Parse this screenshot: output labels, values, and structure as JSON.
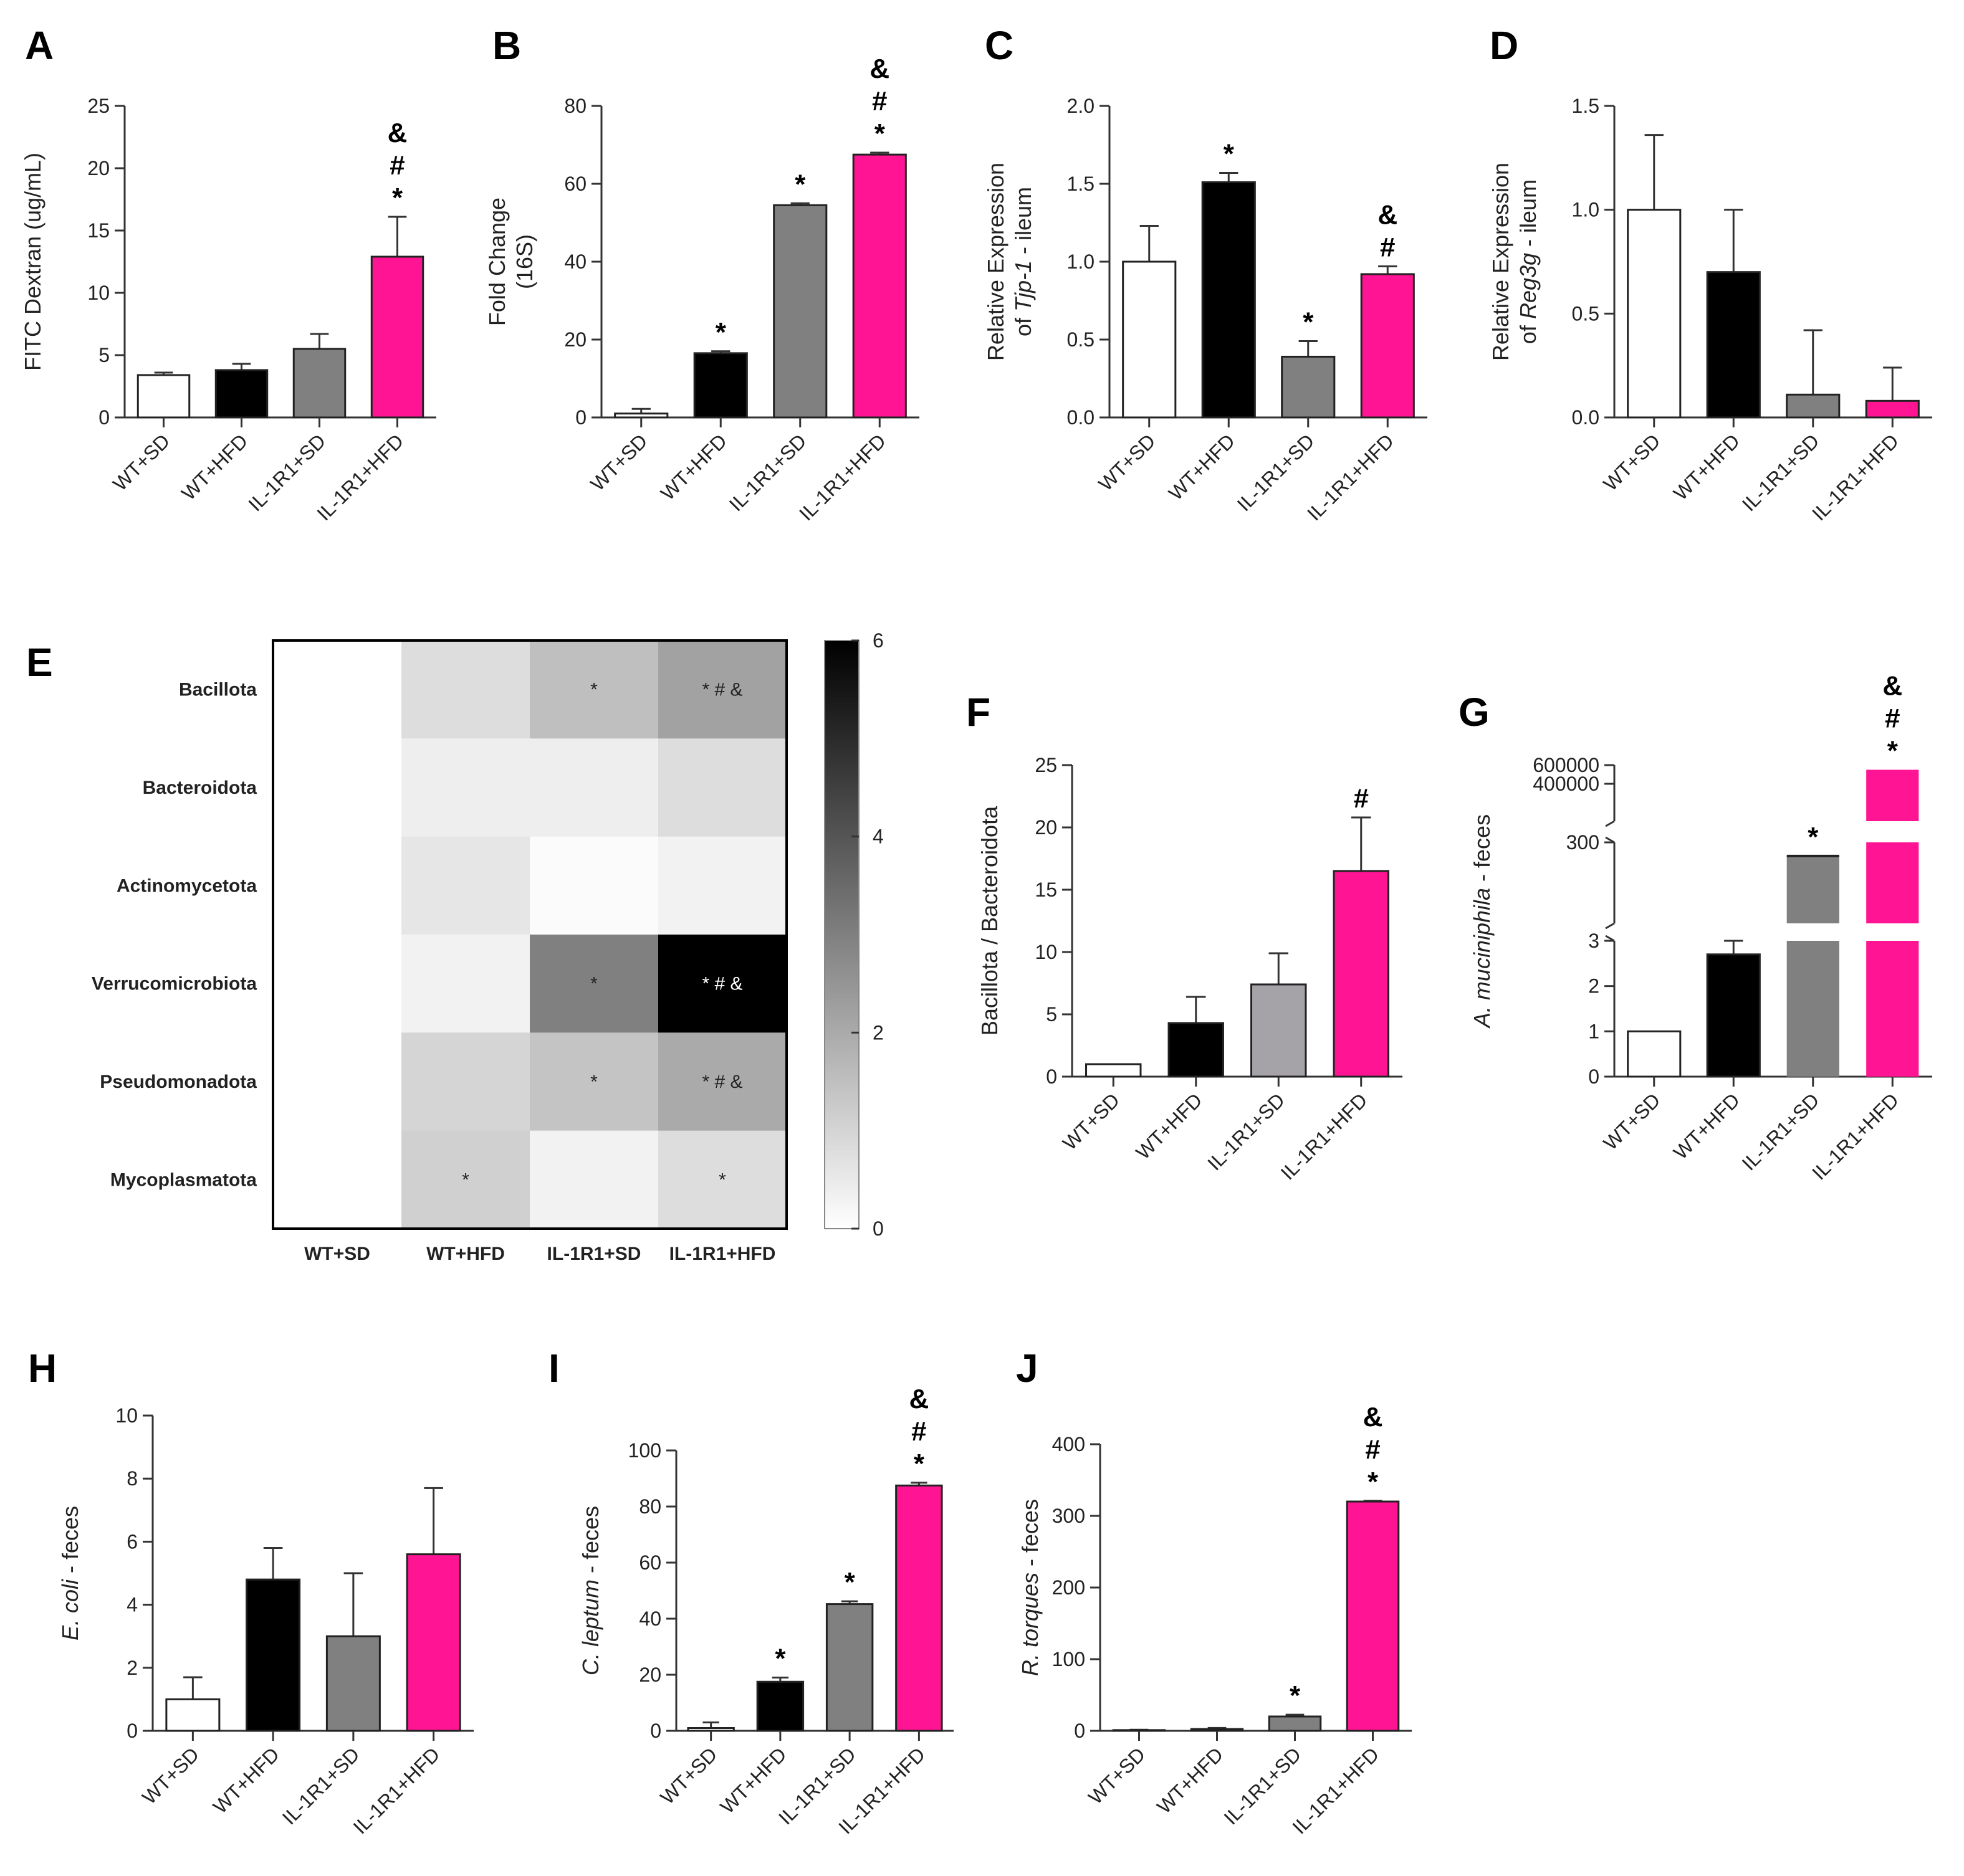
{
  "colors": {
    "wt_sd": "#ffffff",
    "wt_hfd": "#000000",
    "ko_sd": "#808080",
    "ko_hfd": "#ff1493",
    "ko_sd_F": "#a5a3a8"
  },
  "chart_data": [
    {
      "id": "A",
      "panel_label": "A",
      "type": "bar",
      "categories": [
        "WT+SD",
        "WT+HFD",
        "IL-1R1+SD",
        "IL-1R1+HFD"
      ],
      "values": [
        3.4,
        3.8,
        5.5,
        12.9
      ],
      "errors": [
        0.2,
        0.5,
        1.2,
        3.2
      ],
      "sig": [
        "",
        "",
        "",
        "&\n#\n*"
      ],
      "ylabel": [
        "FITC Dextran (ug/mL)"
      ],
      "ylim": [
        0,
        25
      ],
      "yticks": [
        0,
        5,
        10,
        15,
        20,
        25
      ],
      "ytick_labels": [
        "0",
        "5",
        "10",
        "15",
        "20",
        "25"
      ]
    },
    {
      "id": "B",
      "panel_label": "B",
      "type": "bar",
      "categories": [
        "WT+SD",
        "WT+HFD",
        "IL-1R1+SD",
        "IL-1R1+HFD"
      ],
      "values": [
        1.0,
        16.5,
        54.5,
        67.5
      ],
      "errors": [
        1.2,
        0.5,
        0.5,
        0.5
      ],
      "sig": [
        "",
        "*",
        "*",
        "&\n#\n*"
      ],
      "ylabel": [
        "Fold Change",
        "(16S)"
      ],
      "ylim": [
        0,
        80
      ],
      "yticks": [
        0,
        20,
        40,
        60,
        80
      ],
      "ytick_labels": [
        "0",
        "20",
        "40",
        "60",
        "80"
      ]
    },
    {
      "id": "C",
      "panel_label": "C",
      "type": "bar",
      "categories": [
        "WT+SD",
        "WT+HFD",
        "IL-1R1+SD",
        "IL-1R1+HFD"
      ],
      "values": [
        1.0,
        1.51,
        0.39,
        0.92
      ],
      "errors": [
        0.23,
        0.06,
        0.1,
        0.05
      ],
      "sig": [
        "",
        "*",
        "*",
        "&\n#"
      ],
      "ylabel": [
        "Relative Expression",
        "of Tjp-1 - ileum"
      ],
      "ylim": [
        0,
        2.0
      ],
      "yticks": [
        0,
        0.5,
        1.0,
        1.5,
        2.0
      ],
      "ytick_labels": [
        "0.0",
        "0.5",
        "1.0",
        "1.5",
        "2.0"
      ]
    },
    {
      "id": "D",
      "panel_label": "D",
      "type": "bar",
      "categories": [
        "WT+SD",
        "WT+HFD",
        "IL-1R1+SD",
        "IL-1R1+HFD"
      ],
      "values": [
        1.0,
        0.7,
        0.11,
        0.08
      ],
      "errors": [
        0.36,
        0.3,
        0.31,
        0.16
      ],
      "sig": [
        "",
        "",
        "",
        ""
      ],
      "ylabel": [
        "Relative Expression",
        "of Reg3g - ileum"
      ],
      "ylim": [
        0,
        1.5
      ],
      "yticks": [
        0,
        0.5,
        1.0,
        1.5
      ],
      "ytick_labels": [
        "0.0",
        "0.5",
        "1.0",
        "1.5"
      ]
    },
    {
      "id": "E",
      "panel_label": "E",
      "type": "heatmap",
      "rows": [
        "Bacillota",
        "Bacteroidota",
        "Actinomycetota",
        "Verrucomicrobiota",
        "Pseudomonadota",
        "Mycoplasmatota"
      ],
      "columns": [
        "WT+SD",
        "WT+HFD",
        "IL-1R1+SD",
        "IL-1R1+HFD"
      ],
      "values": [
        [
          0,
          0.8,
          1.5,
          2.2
        ],
        [
          0,
          0.4,
          0.4,
          0.8
        ],
        [
          0,
          0.6,
          0.1,
          0.3
        ],
        [
          0,
          0.3,
          3.0,
          6.0
        ],
        [
          0,
          1.0,
          1.4,
          2.0
        ],
        [
          0,
          1.1,
          0.3,
          0.8
        ]
      ],
      "sig": [
        [
          "",
          "",
          "*",
          "* # &"
        ],
        [
          "",
          "",
          "",
          ""
        ],
        [
          "",
          "",
          "",
          ""
        ],
        [
          "",
          "",
          "*",
          "* # &"
        ],
        [
          "",
          "",
          "*",
          "* # &"
        ],
        [
          "",
          "*",
          "",
          "*"
        ]
      ],
      "colorbar": {
        "range": [
          0,
          6
        ],
        "ticks": [
          "0",
          "2",
          "4",
          "6"
        ]
      }
    },
    {
      "id": "F",
      "panel_label": "F",
      "type": "bar",
      "categories": [
        "WT+SD",
        "WT+HFD",
        "IL-1R1+SD",
        "IL-1R1+HFD"
      ],
      "values": [
        1.0,
        4.3,
        7.4,
        16.5
      ],
      "errors": [
        0,
        2.1,
        2.5,
        4.3
      ],
      "sig": [
        "",
        "",
        "",
        "#"
      ],
      "ylabel": [
        "Bacillota / Bacteroidota"
      ],
      "ylim": [
        0,
        25
      ],
      "yticks": [
        0,
        5,
        10,
        15,
        20,
        25
      ],
      "ytick_labels": [
        "0",
        "5",
        "10",
        "15",
        "20",
        "25"
      ]
    },
    {
      "id": "G",
      "panel_label": "G",
      "type": "bar",
      "categories": [
        "WT+SD",
        "WT+HFD",
        "IL-1R1+SD",
        "IL-1R1+HFD"
      ],
      "values": [
        1.0,
        2.7,
        250,
        550000
      ],
      "errors": [
        0,
        0.3,
        2,
        0
      ],
      "sig": [
        "",
        "",
        "*",
        "&\n#\n*"
      ],
      "ylabel": [
        "A. muciniphila - feces"
      ],
      "axis_breaks": true,
      "segments": [
        {
          "range": [
            0,
            3
          ],
          "ticks": [
            "0",
            "1",
            "2",
            "3"
          ]
        },
        {
          "range": [
            3,
            300
          ],
          "ticks": [
            "300"
          ]
        },
        {
          "range": [
            300,
            600000
          ],
          "ticks": [
            "400000",
            "600000"
          ]
        }
      ]
    },
    {
      "id": "H",
      "panel_label": "H",
      "type": "bar",
      "categories": [
        "WT+SD",
        "WT+HFD",
        "IL-1R1+SD",
        "IL-1R1+HFD"
      ],
      "values": [
        1.0,
        4.8,
        3.0,
        5.6
      ],
      "errors": [
        0.7,
        1.0,
        2.0,
        2.1
      ],
      "sig": [
        "",
        "",
        "",
        ""
      ],
      "ylabel": [
        "E. coli - feces"
      ],
      "ylim": [
        0,
        10
      ],
      "yticks": [
        0,
        2,
        4,
        6,
        8,
        10
      ],
      "ytick_labels": [
        "0",
        "2",
        "4",
        "6",
        "8",
        "10"
      ]
    },
    {
      "id": "I",
      "panel_label": "I",
      "type": "bar",
      "categories": [
        "WT+SD",
        "WT+HFD",
        "IL-1R1+SD",
        "IL-1R1+HFD"
      ],
      "values": [
        1.0,
        17.5,
        45.2,
        87.5
      ],
      "errors": [
        2.0,
        1.5,
        1.0,
        1.0
      ],
      "sig": [
        "",
        "*",
        "*",
        "&\n#\n*"
      ],
      "ylabel": [
        "C. leptum - feces"
      ],
      "ylim": [
        0,
        100
      ],
      "yticks": [
        0,
        20,
        40,
        60,
        80,
        100
      ],
      "ytick_labels": [
        "0",
        "20",
        "40",
        "60",
        "80",
        "100"
      ]
    },
    {
      "id": "J",
      "panel_label": "J",
      "type": "bar",
      "categories": [
        "WT+SD",
        "WT+HFD",
        "IL-1R1+SD",
        "IL-1R1+HFD"
      ],
      "values": [
        1.0,
        2.5,
        20.0,
        320.0
      ],
      "errors": [
        0.5,
        1.5,
        2.5,
        1.0
      ],
      "sig": [
        "",
        "",
        "*",
        "&\n#\n*"
      ],
      "ylabel": [
        "R. torques - feces"
      ],
      "ylim": [
        0,
        400
      ],
      "yticks": [
        0,
        100,
        200,
        300,
        400
      ],
      "ytick_labels": [
        "0",
        "100",
        "200",
        "300",
        "400"
      ]
    }
  ]
}
